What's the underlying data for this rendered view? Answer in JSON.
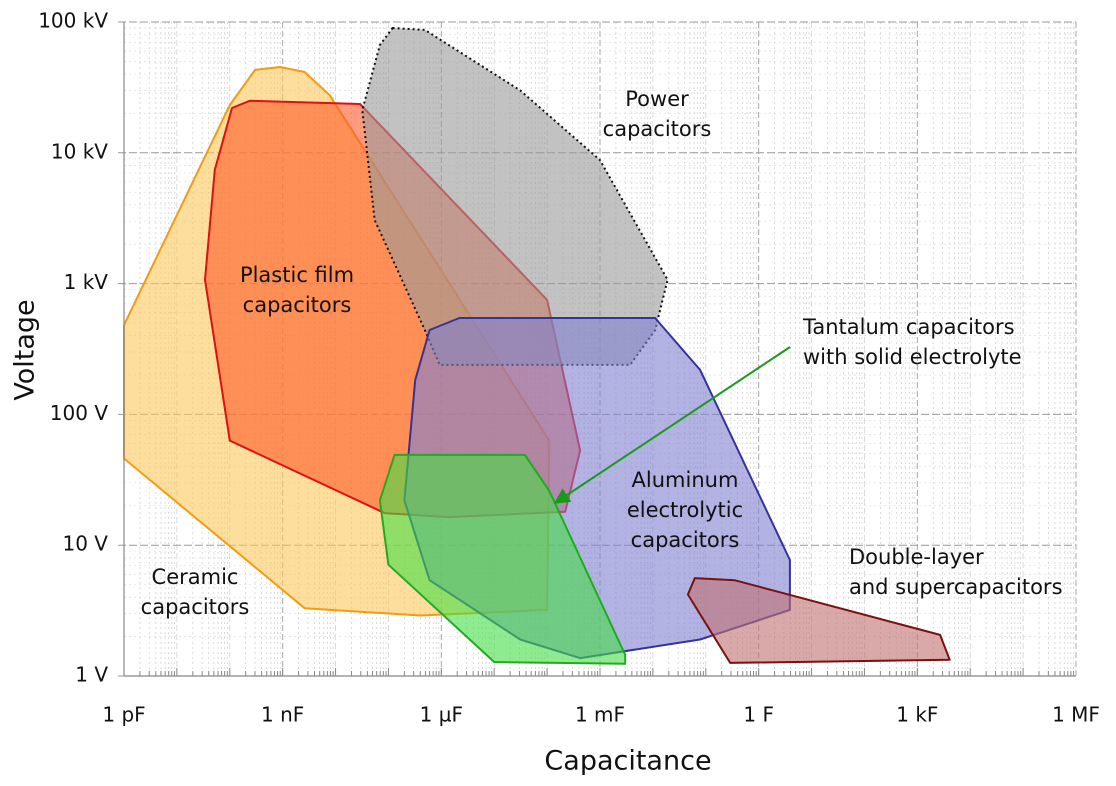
{
  "chart_data": {
    "type": "region",
    "xlabel": "Capacitance",
    "ylabel": "Voltage",
    "xscale": "log",
    "yscale": "log",
    "grid": true,
    "xlim": [
      1e-12,
      1000000.0
    ],
    "ylim": [
      1,
      100000
    ],
    "xticks": [
      {
        "value": 1e-12,
        "label": "1 pF"
      },
      {
        "value": 1e-09,
        "label": "1 nF"
      },
      {
        "value": 1e-06,
        "label": "1 µF"
      },
      {
        "value": 0.001,
        "label": "1 mF"
      },
      {
        "value": 1,
        "label": "1 F"
      },
      {
        "value": 1000,
        "label": "1 kF"
      },
      {
        "value": 1000000,
        "label": "1 MF"
      }
    ],
    "yticks": [
      {
        "value": 1,
        "label": "1 V"
      },
      {
        "value": 10,
        "label": "10 V"
      },
      {
        "value": 100,
        "label": "100 V"
      },
      {
        "value": 1000,
        "label": "1 kV"
      },
      {
        "value": 10000,
        "label": "10 kV"
      },
      {
        "value": 100000,
        "label": "100 kV"
      }
    ],
    "series": [
      {
        "name": "Ceramic capacitors",
        "color": "#f39c12",
        "fill": "#fcc85a",
        "line_style": "solid",
        "x": [
          1e-12,
          1e-12,
          2.6e-09,
          4e-07,
          0.0001,
          0.00011,
          7.8e-09,
          2.6e-09,
          8.9e-10,
          3e-10,
          1e-10
        ],
        "y": [
          482,
          46,
          3.3,
          2.9,
          3.2,
          63,
          27500,
          41500,
          45300,
          43000,
          23200
        ]
      },
      {
        "name": "Plastic film capacitors",
        "color": "#e01010",
        "fill": "#ff5a2a",
        "line_style": "solid",
        "x": [
          1.1e-10,
          2.4e-10,
          2.9e-08,
          0.0001,
          0.00042,
          0.00022,
          1.4e-06,
          8.5e-08,
          1e-10,
          3.4e-11,
          5.2e-11
        ],
        "y": [
          22000,
          25000,
          23600,
          750,
          53,
          18,
          16.4,
          17.6,
          63,
          1070,
          7400
        ]
      },
      {
        "name": "Power capacitors",
        "color": "#111111",
        "fill": "#999999",
        "line_style": "dotted",
        "x": [
          1.2e-07,
          4.9e-07,
          3.1e-05,
          0.001,
          0.019,
          0.011,
          0.0037,
          9.3e-07,
          4.9e-07,
          5.5e-08,
          3.2e-08,
          6.9e-08
        ],
        "y": [
          90000,
          87000,
          30000,
          8800,
          1070,
          440,
          239,
          239,
          440,
          3060,
          21200,
          66700
        ]
      },
      {
        "name": "Aluminum electrolytic capacitors",
        "color": "#33339a",
        "fill": "#7f7fd0",
        "line_style": "solid",
        "x": [
          2.2e-06,
          0.011,
          0.078,
          3.9,
          3.9,
          0.078,
          0.00042,
          3.1e-05,
          6e-07,
          2e-07,
          3.2e-07,
          6e-07
        ],
        "y": [
          546,
          546,
          219,
          7.7,
          3.2,
          1.9,
          1.37,
          1.9,
          5.4,
          22,
          183,
          442
        ]
      },
      {
        "name": "Tantalum capacitors with solid electrolyte",
        "color": "#22aa22",
        "fill": "#44dd44",
        "line_style": "solid",
        "x": [
          1.3e-07,
          3.8e-05,
          0.00011,
          0.003,
          0.003,
          1e-05,
          1e-07,
          6.9e-08
        ],
        "y": [
          49,
          49,
          26,
          1.45,
          1.24,
          1.28,
          7.1,
          22
        ]
      },
      {
        "name": "Double-layer and supercapacitors",
        "color": "#7a1010",
        "fill": "#c07070",
        "line_style": "solid",
        "x": [
          0.062,
          0.35,
          2700,
          4100,
          0.29,
          0.046
        ],
        "y": [
          5.6,
          5.4,
          2.06,
          1.33,
          1.26,
          4.2
        ]
      }
    ]
  }
}
